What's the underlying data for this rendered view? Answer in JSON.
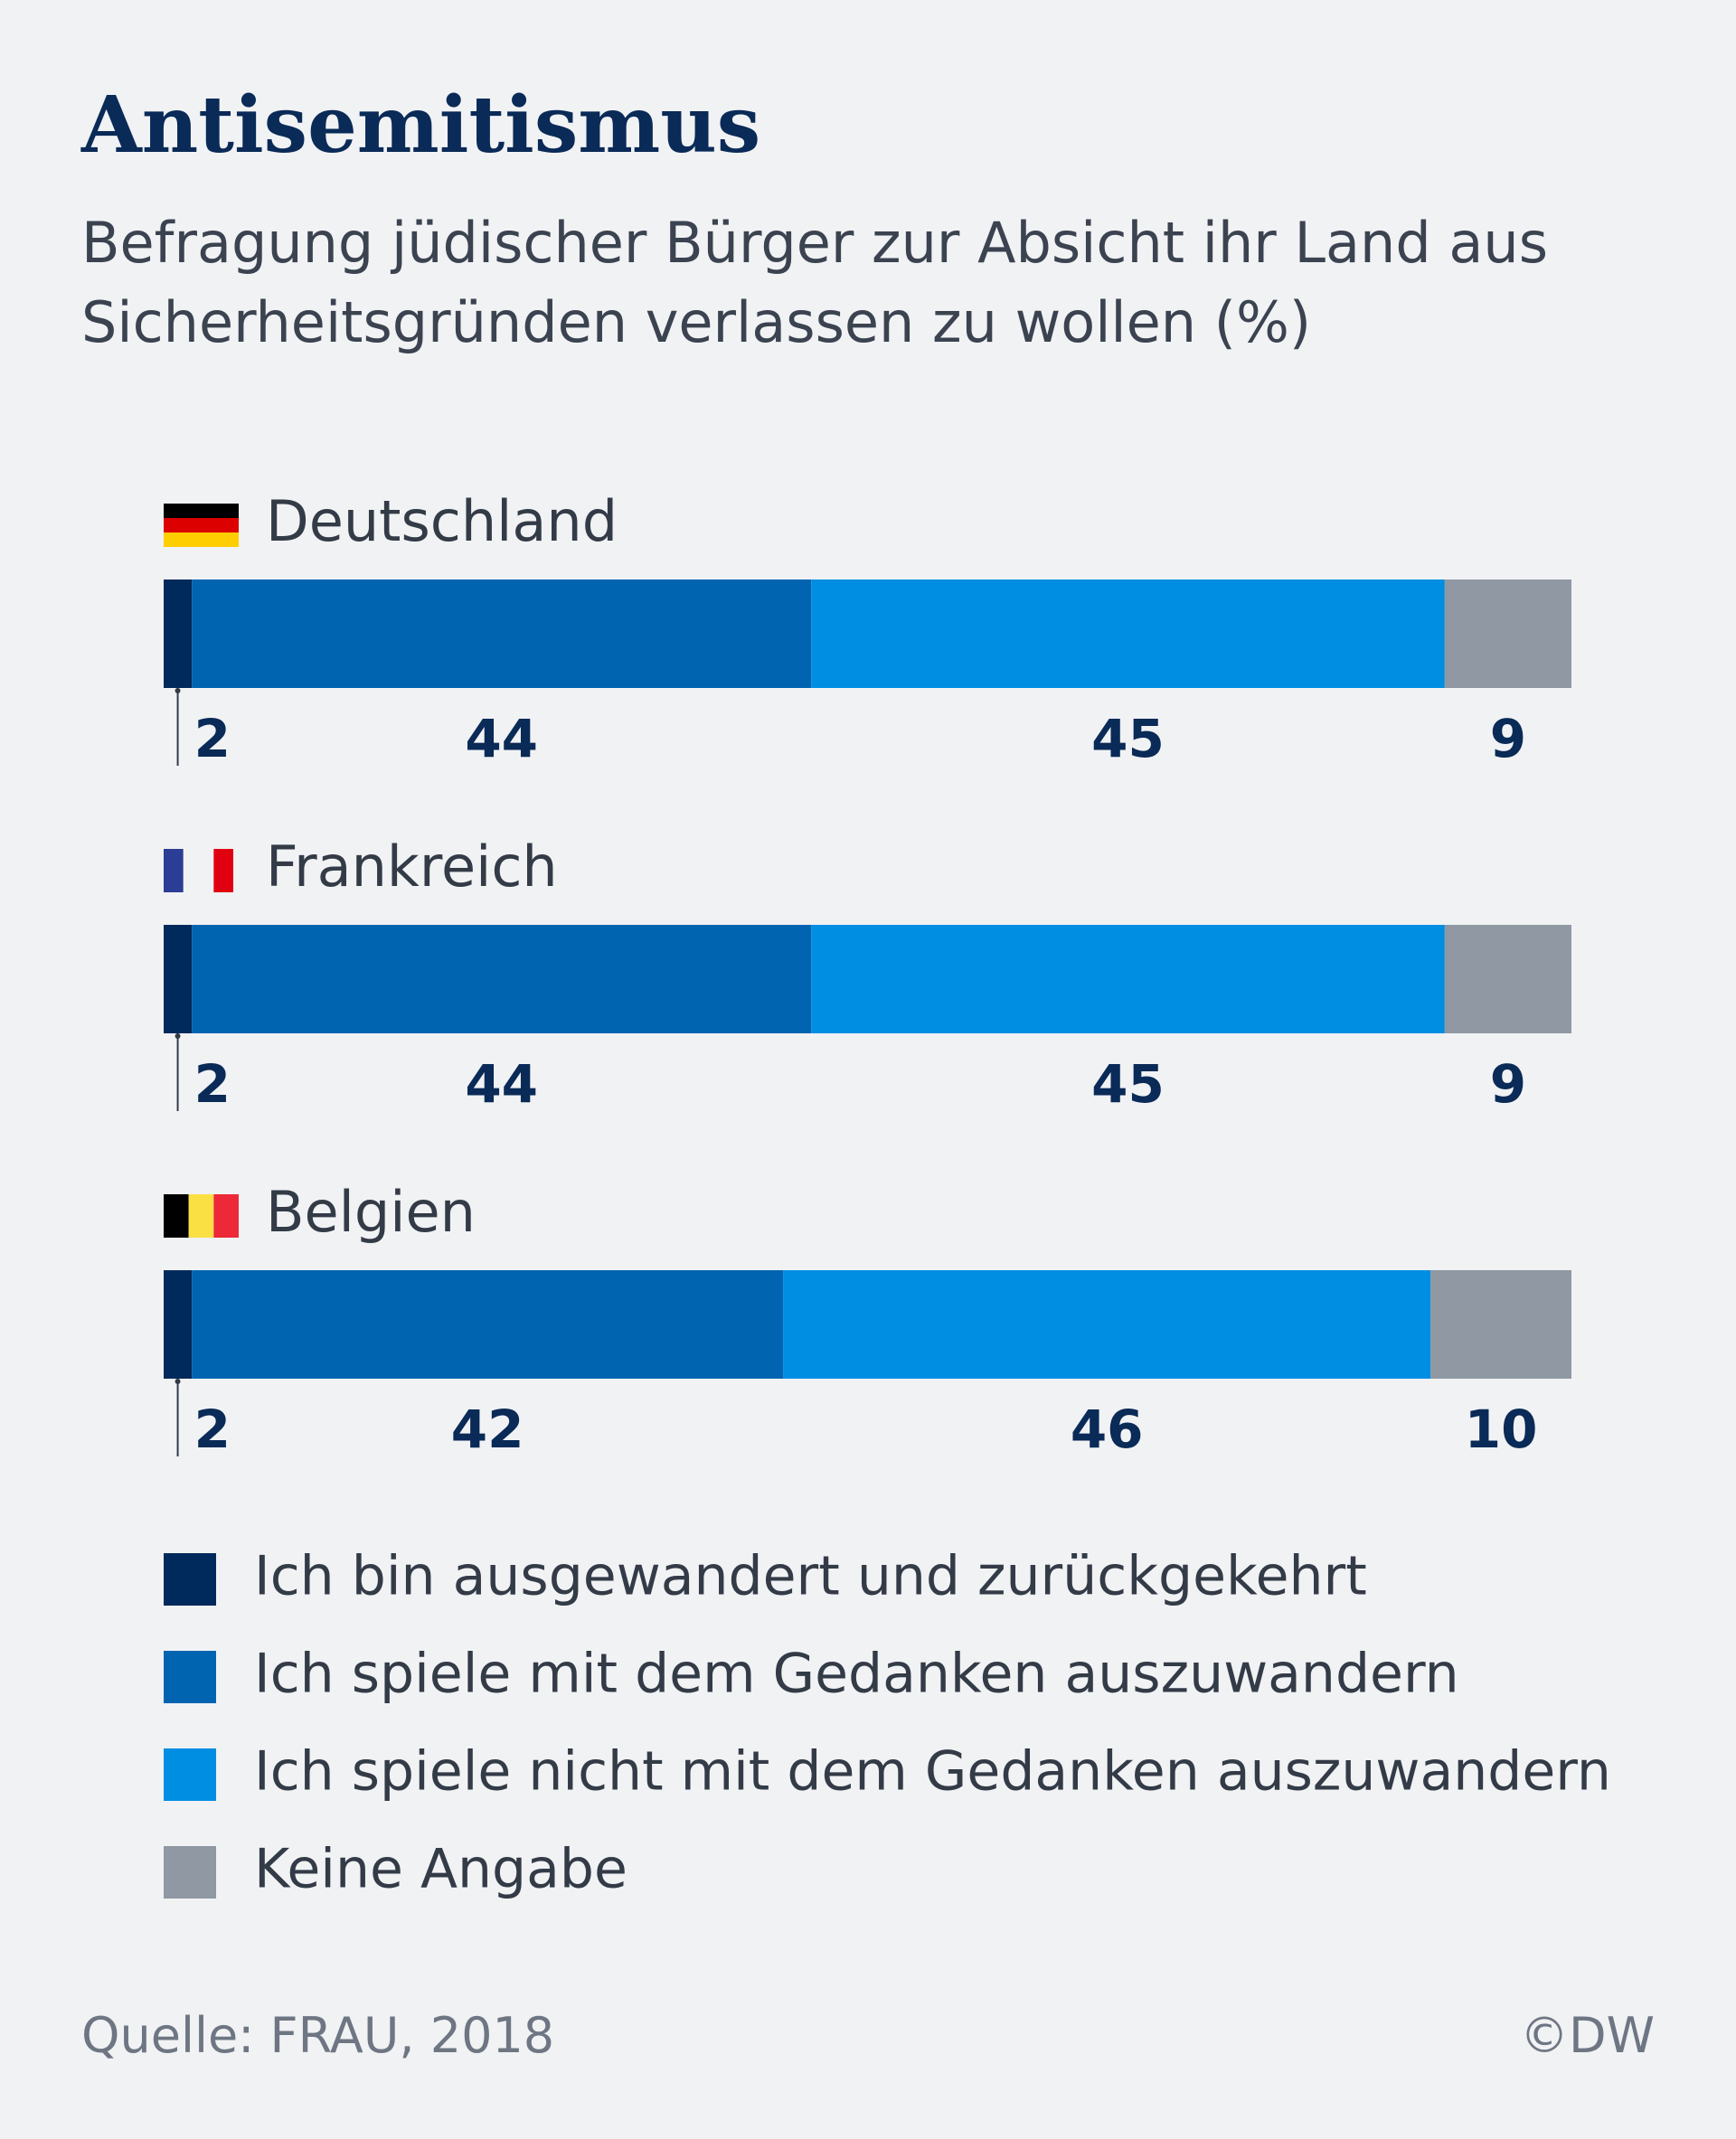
{
  "chart_data": {
    "type": "stacked-bar-horizontal",
    "title": "Antisemitismus",
    "subtitle": "Befragung jüdischer Bürger zur Absicht ihr Land aus Sicherheitsgründen verlassen zu wollen  (%)",
    "categories": [
      "Deutschland",
      "Frankreich",
      "Belgien"
    ],
    "xlim": [
      0,
      100
    ],
    "series": [
      {
        "name": "Ich bin ausgewandert und zurückgekehrt",
        "color": "#002a5c",
        "values": [
          2,
          2,
          2
        ]
      },
      {
        "name": "Ich spiele mit dem Gedanken auszuwandern",
        "color": "#0064b1",
        "values": [
          44,
          44,
          42
        ]
      },
      {
        "name": "Ich spiele nicht mit dem Gedanken auszuwandern",
        "color": "#008ee2",
        "values": [
          45,
          45,
          46
        ]
      },
      {
        "name": "Keine Angabe",
        "color": "#8f98a3",
        "values": [
          9,
          9,
          10
        ]
      }
    ],
    "source": "Quelle: FRAU, 2018",
    "copyright": "©DW"
  }
}
